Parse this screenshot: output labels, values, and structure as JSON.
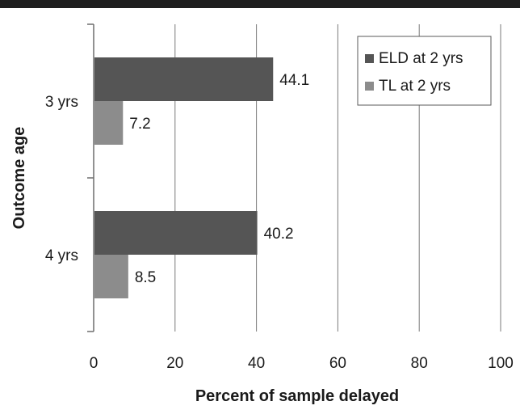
{
  "chart_data": {
    "type": "bar",
    "orientation": "horizontal",
    "categories": [
      "3 yrs",
      "4 yrs"
    ],
    "series": [
      {
        "name": "ELD at 2 yrs",
        "values": [
          44.1,
          40.2
        ],
        "color": "#555555"
      },
      {
        "name": "TL at 2 yrs",
        "values": [
          7.2,
          8.5
        ],
        "color": "#8c8c8c"
      }
    ],
    "data_labels": [
      [
        "44.1",
        "40.2"
      ],
      [
        "7.2",
        "8.5"
      ]
    ],
    "xlabel": "Percent of sample delayed",
    "ylabel": "Outcome age",
    "xlim": [
      0,
      100
    ],
    "xticks": [
      0,
      20,
      40,
      60,
      80,
      100
    ],
    "xtick_labels": [
      "0",
      "20",
      "40",
      "60",
      "80",
      "100"
    ],
    "grid": "vertical",
    "legend_position": "top-right"
  },
  "colors": {
    "top_rule": "#1f1f1f",
    "gridline": "#7a7a7a",
    "axis": "#6e6e6e"
  }
}
